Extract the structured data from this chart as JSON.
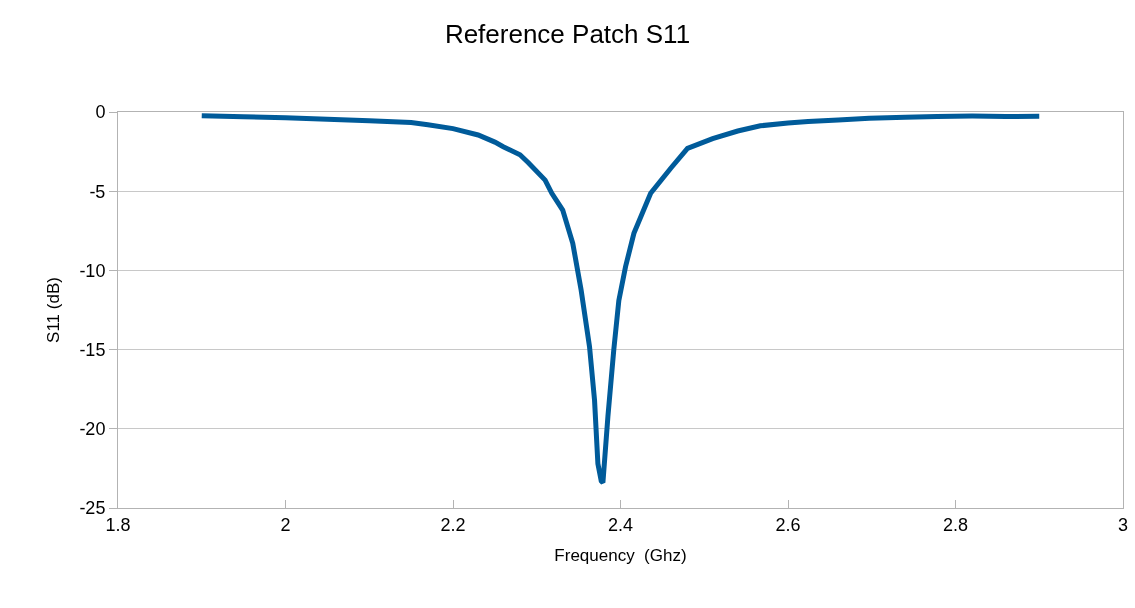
{
  "chart_data": {
    "type": "line",
    "title": "Reference Patch S11",
    "xlabel": "Frequency  (Ghz)",
    "ylabel": "S11 (dB)",
    "x": [
      1.9,
      1.95,
      2.0,
      2.05,
      2.1,
      2.15,
      2.17,
      2.2,
      2.23,
      2.25,
      2.26,
      2.28,
      2.29,
      2.31,
      2.318,
      2.331,
      2.343,
      2.353,
      2.363,
      2.369,
      2.373,
      2.377,
      2.379,
      2.385,
      2.392,
      2.398,
      2.406,
      2.416,
      2.436,
      2.46,
      2.48,
      2.51,
      2.54,
      2.567,
      2.6,
      2.624,
      2.66,
      2.697,
      2.74,
      2.778,
      2.82,
      2.86,
      2.9
    ],
    "series": [
      {
        "color": "#005b9a",
        "values": [
          -0.23,
          -0.3,
          -0.36,
          -0.45,
          -0.55,
          -0.67,
          -0.8,
          -1.05,
          -1.45,
          -1.9,
          -2.19,
          -2.7,
          -3.2,
          -4.3,
          -5.13,
          -6.19,
          -8.29,
          -11.24,
          -14.81,
          -18.2,
          -22.2,
          -23.3,
          -23.4,
          -19.2,
          -15.0,
          -11.9,
          -9.77,
          -7.66,
          -5.13,
          -3.55,
          -2.3,
          -1.68,
          -1.2,
          -0.87,
          -0.7,
          -0.6,
          -0.5,
          -0.39,
          -0.33,
          -0.28,
          -0.26,
          -0.28,
          -0.27
        ]
      }
    ],
    "xlim": [
      1.8,
      3
    ],
    "xticks": [
      1.8,
      2,
      2.2,
      2.4,
      2.6,
      2.8,
      3
    ],
    "ylim": [
      -25,
      0
    ],
    "yticks": [
      -25,
      -20,
      -15,
      -10,
      -5,
      0
    ],
    "grid": "y",
    "marker": "none",
    "line_style": "solid"
  }
}
